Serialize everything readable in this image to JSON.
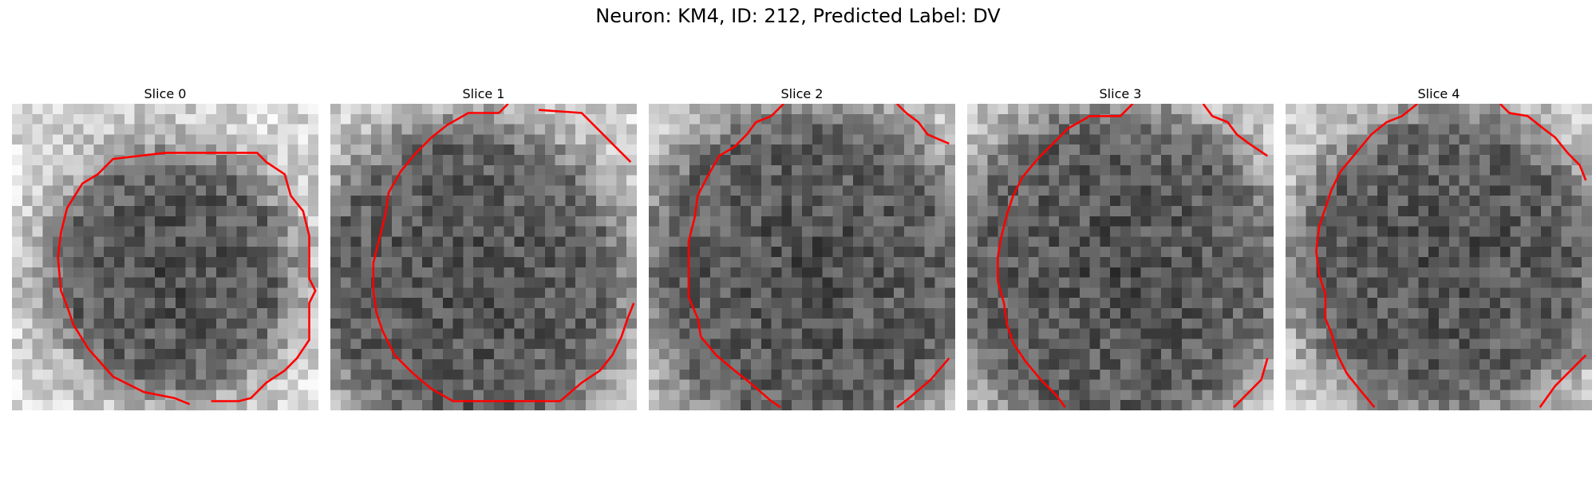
{
  "figure": {
    "title": "Neuron: KM4, ID: 212, Predicted Label: DV"
  },
  "contour_color": "#ff0000",
  "colormap": "gray",
  "grid_size": 30,
  "slices": [
    {
      "label": "Slice 0",
      "darkness_center": [
        0.52,
        0.55
      ],
      "darkness_radius": 0.4,
      "contours": [
        [
          [
            0.18,
            0.34
          ],
          [
            0.23,
            0.26
          ],
          [
            0.28,
            0.23
          ],
          [
            0.33,
            0.18
          ],
          [
            0.5,
            0.16
          ],
          [
            0.8,
            0.16
          ],
          [
            0.83,
            0.19
          ],
          [
            0.89,
            0.23
          ],
          [
            0.91,
            0.3
          ],
          [
            0.95,
            0.35
          ],
          [
            0.97,
            0.43
          ],
          [
            0.97,
            0.57
          ],
          [
            0.99,
            0.61
          ],
          [
            0.97,
            0.65
          ],
          [
            0.97,
            0.77
          ],
          [
            0.93,
            0.83
          ],
          [
            0.89,
            0.87
          ],
          [
            0.83,
            0.91
          ],
          [
            0.78,
            0.96
          ],
          [
            0.74,
            0.97
          ],
          [
            0.65,
            0.97
          ]
        ],
        [
          [
            0.18,
            0.34
          ],
          [
            0.16,
            0.42
          ],
          [
            0.15,
            0.5
          ],
          [
            0.16,
            0.61
          ],
          [
            0.18,
            0.66
          ],
          [
            0.2,
            0.72
          ],
          [
            0.25,
            0.8
          ],
          [
            0.33,
            0.89
          ],
          [
            0.43,
            0.94
          ],
          [
            0.53,
            0.96
          ],
          [
            0.58,
            0.98
          ]
        ]
      ]
    },
    {
      "label": "Slice 1",
      "darkness_center": [
        0.45,
        0.58
      ],
      "darkness_radius": 0.52,
      "contours": [
        [
          [
            0.58,
            0.0
          ],
          [
            0.55,
            0.03
          ],
          [
            0.45,
            0.03
          ],
          [
            0.38,
            0.07
          ],
          [
            0.33,
            0.11
          ],
          [
            0.28,
            0.16
          ],
          [
            0.23,
            0.22
          ],
          [
            0.19,
            0.29
          ],
          [
            0.18,
            0.36
          ],
          [
            0.16,
            0.44
          ],
          [
            0.14,
            0.52
          ],
          [
            0.14,
            0.61
          ],
          [
            0.15,
            0.68
          ],
          [
            0.17,
            0.74
          ],
          [
            0.21,
            0.82
          ],
          [
            0.27,
            0.88
          ],
          [
            0.33,
            0.93
          ],
          [
            0.4,
            0.97
          ],
          [
            0.75,
            0.97
          ],
          [
            0.82,
            0.91
          ],
          [
            0.88,
            0.87
          ],
          [
            0.92,
            0.82
          ],
          [
            0.95,
            0.76
          ],
          [
            0.97,
            0.7
          ],
          [
            0.99,
            0.65
          ]
        ],
        [
          [
            0.68,
            0.02
          ],
          [
            0.82,
            0.03
          ],
          [
            0.9,
            0.11
          ],
          [
            0.98,
            0.19
          ]
        ]
      ]
    },
    {
      "label": "Slice 2",
      "darkness_center": [
        0.52,
        0.55
      ],
      "darkness_radius": 0.55,
      "contours": [
        [
          [
            0.44,
            0.0
          ],
          [
            0.4,
            0.04
          ],
          [
            0.35,
            0.06
          ],
          [
            0.32,
            0.1
          ],
          [
            0.28,
            0.14
          ],
          [
            0.23,
            0.17
          ],
          [
            0.19,
            0.24
          ],
          [
            0.16,
            0.3
          ],
          [
            0.15,
            0.37
          ],
          [
            0.13,
            0.45
          ],
          [
            0.13,
            0.53
          ],
          [
            0.13,
            0.63
          ],
          [
            0.16,
            0.7
          ],
          [
            0.17,
            0.76
          ],
          [
            0.22,
            0.82
          ],
          [
            0.28,
            0.87
          ],
          [
            0.33,
            0.91
          ],
          [
            0.4,
            0.97
          ],
          [
            0.43,
            0.99
          ]
        ],
        [
          [
            0.81,
            0.0
          ],
          [
            0.84,
            0.03
          ],
          [
            0.88,
            0.06
          ],
          [
            0.91,
            0.1
          ],
          [
            0.98,
            0.13
          ]
        ],
        [
          [
            0.98,
            0.83
          ],
          [
            0.92,
            0.9
          ],
          [
            0.85,
            0.96
          ],
          [
            0.81,
            0.99
          ]
        ]
      ]
    },
    {
      "label": "Slice 3",
      "darkness_center": [
        0.48,
        0.55
      ],
      "darkness_radius": 0.55,
      "contours": [
        [
          [
            0.54,
            0.0
          ],
          [
            0.5,
            0.04
          ],
          [
            0.4,
            0.04
          ],
          [
            0.33,
            0.08
          ],
          [
            0.28,
            0.13
          ],
          [
            0.23,
            0.18
          ],
          [
            0.18,
            0.24
          ],
          [
            0.15,
            0.3
          ],
          [
            0.13,
            0.36
          ],
          [
            0.11,
            0.44
          ],
          [
            0.1,
            0.5
          ],
          [
            0.1,
            0.58
          ],
          [
            0.12,
            0.65
          ],
          [
            0.13,
            0.72
          ],
          [
            0.15,
            0.78
          ],
          [
            0.19,
            0.84
          ],
          [
            0.24,
            0.9
          ],
          [
            0.29,
            0.95
          ],
          [
            0.32,
            0.99
          ]
        ],
        [
          [
            0.77,
            0.0
          ],
          [
            0.8,
            0.04
          ],
          [
            0.85,
            0.06
          ],
          [
            0.88,
            0.1
          ],
          [
            0.92,
            0.13
          ],
          [
            0.98,
            0.17
          ]
        ],
        [
          [
            0.98,
            0.83
          ],
          [
            0.96,
            0.9
          ],
          [
            0.92,
            0.94
          ],
          [
            0.87,
            0.99
          ]
        ]
      ]
    },
    {
      "label": "Slice 4",
      "darkness_center": [
        0.52,
        0.52
      ],
      "darkness_radius": 0.5,
      "contours": [
        [
          [
            0.43,
            0.0
          ],
          [
            0.38,
            0.04
          ],
          [
            0.33,
            0.06
          ],
          [
            0.28,
            0.1
          ],
          [
            0.23,
            0.16
          ],
          [
            0.18,
            0.22
          ],
          [
            0.15,
            0.28
          ],
          [
            0.13,
            0.34
          ],
          [
            0.11,
            0.4
          ],
          [
            0.1,
            0.48
          ],
          [
            0.11,
            0.56
          ],
          [
            0.13,
            0.62
          ],
          [
            0.13,
            0.7
          ],
          [
            0.15,
            0.75
          ],
          [
            0.17,
            0.82
          ],
          [
            0.2,
            0.88
          ],
          [
            0.24,
            0.93
          ],
          [
            0.29,
            0.99
          ]
        ],
        [
          [
            0.7,
            0.0
          ],
          [
            0.73,
            0.03
          ],
          [
            0.79,
            0.04
          ],
          [
            0.84,
            0.08
          ],
          [
            0.88,
            0.11
          ],
          [
            0.92,
            0.16
          ],
          [
            0.96,
            0.2
          ],
          [
            0.98,
            0.25
          ]
        ],
        [
          [
            0.98,
            0.82
          ],
          [
            0.93,
            0.87
          ],
          [
            0.88,
            0.92
          ],
          [
            0.83,
            0.99
          ]
        ]
      ]
    }
  ]
}
